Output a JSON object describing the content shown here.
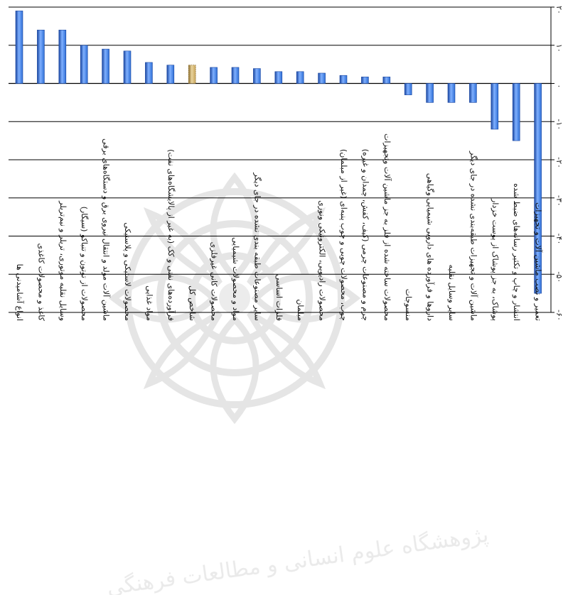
{
  "chart_data": {
    "type": "bar",
    "orientation": "vertical",
    "categories": [
      "انواع آشامیدنی ها",
      "کاغذ و محصولات کاغذی",
      "وسایل نقلیه موتوری، تریلر و نیم‌تریلر",
      "محصولات از توتون و تنباکو (سیگار)",
      "ماشین آلات مولد و انتقال نیروی برق و دستگاه‌های برقی",
      "محصولات لاستیکی و پلاستیکی",
      "مواد غذایی",
      "فرآورده‌های نفتی و کک (به غیر از پالایشگاه‌های نفت)",
      "شاخص کل",
      "محصولات کانی غیرفلزی",
      "مواد و محصولات شیمیایی",
      "سایر مصنوعات طبقه بندی نشده در جای دیگر",
      "فلزات اساسی",
      "مبلمان",
      "محصولات رادیویی، الکترونیکی ونوری",
      "چوب، محصولات چوبی و چوب پنبه‌ای (غیر از مبلمان)",
      "چرم و مصنوعات چرمی (کیف، کفش، چمدان و غیره)",
      "محصولات ساخته شده از فلز به جز ماشین آلات وتجهیزات",
      "منسوجات",
      "داروها و فرآورده های دارویی شیمیایی وگیاهی",
      "سایر وسایل نقلیه",
      "ماشین آلات و تجهیزات طبقه‌بندی نشده در جای دیگر",
      "پوشاک، به جز پوشاک از پوست خزدار",
      "انتشار و چاپ و تکثیر رسانه‌های ضبط شده",
      "تعمیر و نصب ماشین آلات و تجهیزات"
    ],
    "values": [
      19,
      14,
      14,
      10,
      9,
      8.5,
      5.5,
      4.8,
      4.8,
      4.2,
      4.2,
      3.9,
      3.1,
      3.1,
      2.7,
      2.1,
      1.7,
      1.7,
      -3,
      -5,
      -5,
      -5,
      -12,
      -15,
      -55
    ],
    "highlight_category": "شاخص کل",
    "ylim": [
      -60,
      20
    ],
    "ytick_values": [
      20,
      10,
      0,
      -10,
      -20,
      -30,
      -40,
      -50,
      -60
    ],
    "ytick_labels": [
      "۲۰",
      "۱۰",
      "۰",
      "-۱۰",
      "-۲۰",
      "-۳۰",
      "-۴۰",
      "-۵۰",
      "-۶۰"
    ],
    "grid": true,
    "title": "",
    "xlabel": "",
    "ylabel": "",
    "colors": {
      "bar": "#2f6fd6",
      "bar_dark": "#1a46a0",
      "bar_light": "#7fb0ff",
      "highlight": "#c8a45a",
      "highlight_dark": "#8a6b2a",
      "highlight_light": "#e9d49e",
      "grid": "#000000",
      "axis": "#000000"
    }
  },
  "watermark": {
    "text": "پژوهشگاه علوم انسانی و مطالعات فرهنگی",
    "color": "#d9d9d9"
  }
}
